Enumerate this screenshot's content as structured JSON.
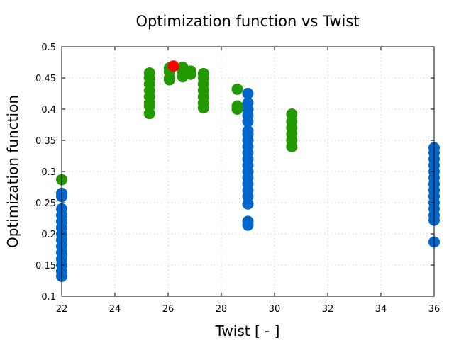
{
  "chart_data": {
    "type": "scatter",
    "title": "Optimization function vs Twist",
    "xlabel": "Twist [ - ]",
    "ylabel": "Optimization function",
    "xlim": [
      22,
      36
    ],
    "ylim": [
      0.1,
      0.5
    ],
    "grid": true,
    "xticks": [
      "22",
      "24",
      "26",
      "28",
      "30",
      "32",
      "34",
      "36"
    ],
    "yticks": [
      "0.1",
      "0.15",
      "0.2",
      "0.25",
      "0.3",
      "0.35",
      "0.4",
      "0.45",
      "0.5"
    ],
    "series": [
      {
        "name": "blue",
        "color": "#0066cc",
        "points": [
          [
            22,
            0.265
          ],
          [
            22,
            0.26
          ],
          [
            22,
            0.24
          ],
          [
            22,
            0.23
          ],
          [
            22,
            0.22
          ],
          [
            22,
            0.21
          ],
          [
            22,
            0.2
          ],
          [
            22,
            0.19
          ],
          [
            22,
            0.18
          ],
          [
            22,
            0.17
          ],
          [
            22,
            0.16
          ],
          [
            22,
            0.15
          ],
          [
            22,
            0.14
          ],
          [
            22,
            0.132
          ],
          [
            29,
            0.425
          ],
          [
            29,
            0.41
          ],
          [
            29,
            0.4
          ],
          [
            29,
            0.39
          ],
          [
            29,
            0.38
          ],
          [
            29,
            0.365
          ],
          [
            29,
            0.36
          ],
          [
            29,
            0.35
          ],
          [
            29,
            0.34
          ],
          [
            29,
            0.33
          ],
          [
            29,
            0.32
          ],
          [
            29,
            0.31
          ],
          [
            29,
            0.3
          ],
          [
            29,
            0.29
          ],
          [
            29,
            0.28
          ],
          [
            29,
            0.27
          ],
          [
            29,
            0.26
          ],
          [
            29,
            0.248
          ],
          [
            29,
            0.22
          ],
          [
            29,
            0.214
          ],
          [
            36,
            0.338
          ],
          [
            36,
            0.33
          ],
          [
            36,
            0.32
          ],
          [
            36,
            0.31
          ],
          [
            36,
            0.3
          ],
          [
            36,
            0.29
          ],
          [
            36,
            0.28
          ],
          [
            36,
            0.27
          ],
          [
            36,
            0.26
          ],
          [
            36,
            0.25
          ],
          [
            36,
            0.24
          ],
          [
            36,
            0.23
          ],
          [
            36,
            0.222
          ],
          [
            36,
            0.187
          ]
        ]
      },
      {
        "name": "green",
        "color": "#229900",
        "points": [
          [
            22,
            0.287
          ],
          [
            25.3,
            0.458
          ],
          [
            25.3,
            0.45
          ],
          [
            25.3,
            0.44
          ],
          [
            25.3,
            0.43
          ],
          [
            25.3,
            0.42
          ],
          [
            25.3,
            0.41
          ],
          [
            25.3,
            0.405
          ],
          [
            25.3,
            0.393
          ],
          [
            26.05,
            0.466
          ],
          [
            26.05,
            0.46
          ],
          [
            26.05,
            0.45
          ],
          [
            26.05,
            0.447
          ],
          [
            26.55,
            0.467
          ],
          [
            26.55,
            0.46
          ],
          [
            26.55,
            0.452
          ],
          [
            26.85,
            0.461
          ],
          [
            26.85,
            0.456
          ],
          [
            27.33,
            0.457
          ],
          [
            27.33,
            0.45
          ],
          [
            27.33,
            0.44
          ],
          [
            27.33,
            0.43
          ],
          [
            27.33,
            0.42
          ],
          [
            27.33,
            0.41
          ],
          [
            27.33,
            0.402
          ],
          [
            28.6,
            0.432
          ],
          [
            28.6,
            0.405
          ],
          [
            28.6,
            0.4
          ],
          [
            30.65,
            0.392
          ],
          [
            30.65,
            0.38
          ],
          [
            30.65,
            0.37
          ],
          [
            30.65,
            0.36
          ],
          [
            30.65,
            0.35
          ],
          [
            30.65,
            0.34
          ]
        ]
      },
      {
        "name": "best",
        "color": "#ff0000",
        "points": [
          [
            26.2,
            0.469
          ]
        ]
      }
    ]
  }
}
